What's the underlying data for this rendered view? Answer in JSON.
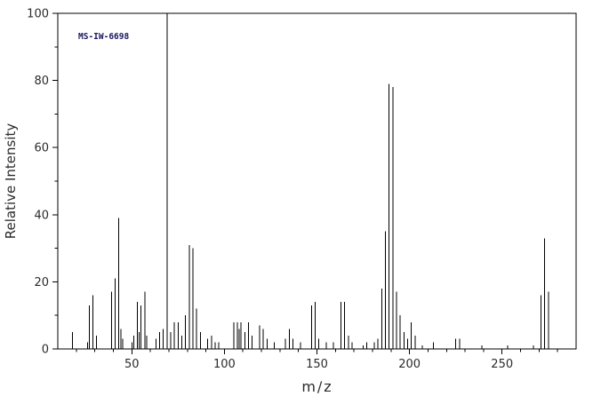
{
  "chart": {
    "watermark": "MS-IW-6698",
    "xlabel": "m/z",
    "ylabel": "Relative Intensity"
  },
  "chart_data": {
    "type": "bar",
    "subtype": "mass-spectrum",
    "title": "",
    "annotation": "MS-IW-6698",
    "xlabel": "m/z",
    "ylabel": "Relative Intensity",
    "xlim": [
      10,
      290
    ],
    "ylim": [
      0,
      100
    ],
    "x_ticks": [
      50,
      100,
      150,
      200,
      250
    ],
    "y_ticks": [
      0,
      20,
      40,
      60,
      80,
      100
    ],
    "x_minor_step": 10,
    "y_minor_step": 10,
    "grid": false,
    "legend": false,
    "peaks": [
      [
        18,
        5
      ],
      [
        26,
        2
      ],
      [
        27,
        13
      ],
      [
        29,
        16
      ],
      [
        31,
        4
      ],
      [
        39,
        17
      ],
      [
        41,
        21
      ],
      [
        43,
        39
      ],
      [
        44,
        6
      ],
      [
        45,
        3
      ],
      [
        50,
        2
      ],
      [
        51,
        4
      ],
      [
        53,
        14
      ],
      [
        54,
        5
      ],
      [
        55,
        13
      ],
      [
        57,
        17
      ],
      [
        58,
        4
      ],
      [
        63,
        3
      ],
      [
        65,
        5
      ],
      [
        67,
        6
      ],
      [
        69,
        100
      ],
      [
        71,
        5
      ],
      [
        73,
        8
      ],
      [
        75,
        8
      ],
      [
        77,
        4
      ],
      [
        79,
        10
      ],
      [
        81,
        31
      ],
      [
        83,
        30
      ],
      [
        85,
        12
      ],
      [
        87,
        5
      ],
      [
        91,
        3
      ],
      [
        93,
        4
      ],
      [
        95,
        2
      ],
      [
        97,
        2
      ],
      [
        105,
        8
      ],
      [
        107,
        8
      ],
      [
        108,
        6
      ],
      [
        109,
        8
      ],
      [
        111,
        5
      ],
      [
        113,
        8
      ],
      [
        115,
        4
      ],
      [
        119,
        7
      ],
      [
        121,
        6
      ],
      [
        123,
        3
      ],
      [
        127,
        2
      ],
      [
        133,
        3
      ],
      [
        135,
        6
      ],
      [
        137,
        3
      ],
      [
        141,
        2
      ],
      [
        147,
        13
      ],
      [
        149,
        14
      ],
      [
        151,
        3
      ],
      [
        155,
        2
      ],
      [
        159,
        2
      ],
      [
        163,
        14
      ],
      [
        165,
        14
      ],
      [
        167,
        4
      ],
      [
        169,
        2
      ],
      [
        175,
        1
      ],
      [
        177,
        2
      ],
      [
        181,
        2
      ],
      [
        183,
        3
      ],
      [
        185,
        18
      ],
      [
        187,
        35
      ],
      [
        189,
        79
      ],
      [
        191,
        78
      ],
      [
        193,
        17
      ],
      [
        195,
        10
      ],
      [
        197,
        5
      ],
      [
        199,
        3
      ],
      [
        201,
        8
      ],
      [
        203,
        4
      ],
      [
        207,
        1
      ],
      [
        213,
        2
      ],
      [
        225,
        3
      ],
      [
        227,
        3
      ],
      [
        239,
        1
      ],
      [
        253,
        1
      ],
      [
        267,
        1
      ],
      [
        271,
        16
      ],
      [
        273,
        33
      ],
      [
        275,
        17
      ]
    ]
  }
}
